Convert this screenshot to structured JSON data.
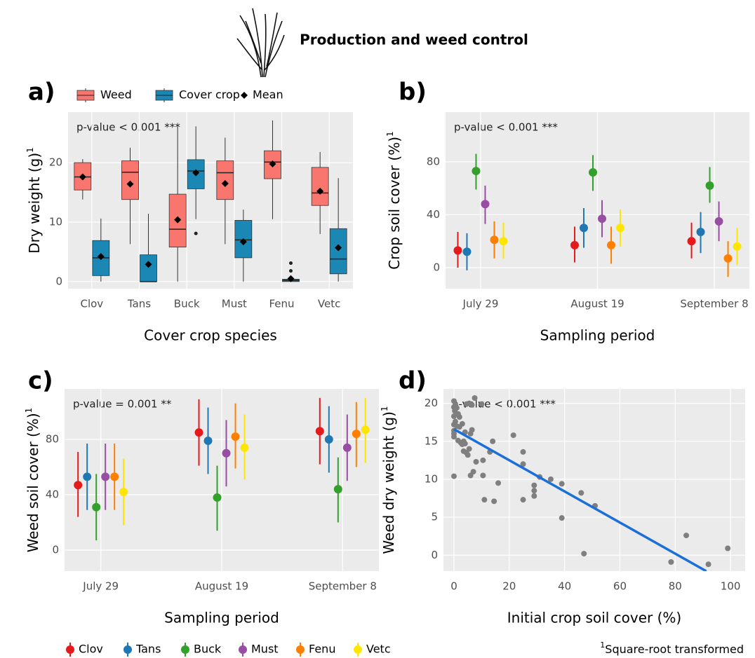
{
  "title": "Production and weed control",
  "footnote_mark": "1",
  "footnote": "Square-root transformed",
  "chart_data": [
    {
      "type": "box",
      "panel": "a)",
      "annotation": "p-value < 0.001 ***",
      "x_label": "Cover crop species",
      "y_label": "Dry weight (g)",
      "y_label_sup": "1",
      "legend_mean": "Mean",
      "categories": [
        "Clov",
        "Tans",
        "Buck",
        "Must",
        "Fenu",
        "Vetc"
      ],
      "ylim": [
        -1.2,
        28.5
      ],
      "yticks": [
        0,
        10,
        20
      ],
      "series": [
        {
          "name": "Weed",
          "color": "#f8766d",
          "boxes": [
            {
              "min": 13.8,
              "q1": 15.4,
              "median": 17.6,
              "q3": 20.0,
              "max": 20.6,
              "mean": 17.6
            },
            {
              "min": 6.3,
              "q1": 13.8,
              "median": 18.4,
              "q3": 20.3,
              "max": 22.5,
              "mean": 16.4
            },
            {
              "min": 0,
              "q1": 5.8,
              "median": 8.8,
              "q3": 14.7,
              "max": 26.0,
              "mean": 10.4
            },
            {
              "min": 6.3,
              "q1": 13.8,
              "median": 18.3,
              "q3": 20.3,
              "max": 24.2,
              "mean": 16.5
            },
            {
              "min": 10.5,
              "q1": 17.3,
              "median": 20.1,
              "q3": 22.0,
              "max": 27.1,
              "mean": 19.8
            },
            {
              "min": 8.0,
              "q1": 12.8,
              "median": 14.9,
              "q3": 19.2,
              "max": 21.8,
              "mean": 15.2
            }
          ]
        },
        {
          "name": "Cover crop",
          "color": "#1a87b4",
          "boxes": [
            {
              "min": 0,
              "q1": 1.0,
              "median": 4.0,
              "q3": 6.9,
              "max": 10.6,
              "mean": 4.2
            },
            {
              "min": 0,
              "q1": 0,
              "median": 0,
              "q3": 4.5,
              "max": 11.4,
              "mean": 2.9
            },
            {
              "min": 10.5,
              "q1": 15.6,
              "median": 18.6,
              "q3": 20.5,
              "max": 26.1,
              "mean": 18.3,
              "outliers": [
                8.1
              ]
            },
            {
              "min": 0,
              "q1": 4.0,
              "median": 7.0,
              "q3": 10.3,
              "max": 12.1,
              "mean": 6.7
            },
            {
              "min": 0,
              "q1": 0,
              "median": 0.2,
              "q3": 0.4,
              "max": 0.6,
              "mean": 0.5,
              "outliers": [
                3.1,
                1.8
              ]
            },
            {
              "min": 0,
              "q1": 1.3,
              "median": 3.8,
              "q3": 8.9,
              "max": 17.4,
              "mean": 5.7
            }
          ]
        }
      ]
    },
    {
      "type": "pointrange",
      "panel": "b)",
      "annotation": "p-value < 0.001 ***",
      "x_label": "Sampling period",
      "y_label": "Crop soil cover (%)",
      "y_label_sup": "1",
      "categories": [
        "July 29",
        "August 19",
        "September 8"
      ],
      "ylim": [
        -15.9,
        117.5
      ],
      "yticks": [
        0,
        40,
        80
      ],
      "series": [
        {
          "color": "#e41a1c",
          "values": [
            13,
            17,
            20
          ],
          "lower": [
            0,
            4,
            7
          ],
          "upper": [
            27,
            31,
            34
          ]
        },
        {
          "color": "#1f78b4",
          "values": [
            12,
            30,
            27
          ],
          "lower": [
            -2,
            15,
            11
          ],
          "upper": [
            26,
            45,
            42
          ]
        },
        {
          "color": "#33a02c",
          "values": [
            73,
            72,
            62
          ],
          "lower": [
            59,
            58,
            49
          ],
          "upper": [
            86,
            85,
            76
          ]
        },
        {
          "color": "#984ea3",
          "values": [
            48,
            37,
            35
          ],
          "lower": [
            33,
            23,
            20
          ],
          "upper": [
            62,
            51,
            50
          ]
        },
        {
          "color": "#ff7f00",
          "values": [
            21,
            17,
            7
          ],
          "lower": [
            7,
            3,
            -7
          ],
          "upper": [
            35,
            31,
            20
          ]
        },
        {
          "color": "#ffe600",
          "values": [
            20,
            30,
            16
          ],
          "lower": [
            7,
            16,
            2
          ],
          "upper": [
            34,
            44,
            30
          ]
        }
      ]
    },
    {
      "type": "pointrange",
      "panel": "c)",
      "annotation": "p-value = 0.001 **",
      "x_label": "Sampling period",
      "y_label": "Weed soil cover (%)",
      "y_label_sup": "1",
      "categories": [
        "July 29",
        "August 19",
        "September 8"
      ],
      "ylim": [
        -15.2,
        116.5
      ],
      "yticks": [
        0,
        40,
        80
      ],
      "series": [
        {
          "name": "Clov",
          "color": "#e41a1c",
          "values": [
            47,
            85,
            86
          ],
          "lower": [
            24,
            61,
            62
          ],
          "upper": [
            71,
            109,
            110
          ]
        },
        {
          "name": "Tans",
          "color": "#1f78b4",
          "values": [
            53,
            79,
            80
          ],
          "lower": [
            29,
            55,
            56
          ],
          "upper": [
            77,
            103,
            104
          ]
        },
        {
          "name": "Buck",
          "color": "#33a02c",
          "values": [
            31,
            38,
            44
          ],
          "lower": [
            7,
            14,
            20
          ],
          "upper": [
            55,
            61,
            67
          ]
        },
        {
          "name": "Must",
          "color": "#984ea3",
          "values": [
            53,
            70,
            74
          ],
          "lower": [
            29,
            46,
            50
          ],
          "upper": [
            77,
            94,
            98
          ]
        },
        {
          "name": "Fenu",
          "color": "#ff7f00",
          "values": [
            53,
            82,
            84
          ],
          "lower": [
            29,
            59,
            60
          ],
          "upper": [
            77,
            106,
            107
          ]
        },
        {
          "name": "Vetc",
          "color": "#ffe600",
          "values": [
            42,
            74,
            87
          ],
          "lower": [
            18,
            51,
            63
          ],
          "upper": [
            66,
            98,
            110
          ]
        }
      ]
    },
    {
      "type": "scatter",
      "panel": "d)",
      "annotation": "p-value < 0.001 ***",
      "x_label": "Initial crop soil cover (%)",
      "y_label": "Weed dry weight (g)",
      "y_label_sup": "1",
      "xlim": [
        -3.8,
        105.3
      ],
      "xticks": [
        0,
        20,
        40,
        60,
        80,
        100
      ],
      "ylim": [
        -2.1,
        21.9
      ],
      "yticks": [
        0,
        5,
        10,
        15,
        20
      ],
      "color": "#7f7f7f",
      "x": [
        0,
        0.5,
        0,
        1,
        0.3,
        1.5,
        0,
        2,
        0.5,
        0,
        1,
        2,
        0,
        0,
        0,
        0,
        1.5,
        2.5,
        3,
        3.5,
        4,
        3.5,
        4.5,
        5,
        5.5,
        4,
        6,
        3,
        4.5,
        5.5,
        6.5,
        7.5,
        10,
        6.5,
        8,
        7,
        6,
        10.5,
        10.5,
        11,
        14,
        13,
        14.5,
        16,
        21.5,
        25,
        25,
        25,
        29,
        29,
        29,
        31,
        35,
        39,
        39,
        46,
        47,
        51,
        78.5,
        84,
        92,
        99
      ],
      "y": [
        20.3,
        19.8,
        19.5,
        19.4,
        19.0,
        18.6,
        18.3,
        18.2,
        17.6,
        17.2,
        17.0,
        16.9,
        16.4,
        16.0,
        15.6,
        10.4,
        15.1,
        14.8,
        14.6,
        15.0,
        14.7,
        13.7,
        13.5,
        13.2,
        14.0,
        16.2,
        16.0,
        17.3,
        19.9,
        20.0,
        19.8,
        20.7,
        19.9,
        16.5,
        12.3,
        11.0,
        10.5,
        12.5,
        10.5,
        7.3,
        15.0,
        13.6,
        7.1,
        9.5,
        15.8,
        13.6,
        12.0,
        7.3,
        9.2,
        8.5,
        7.8,
        10.3,
        10.0,
        9.4,
        4.9,
        8.2,
        0.2,
        6.5,
        -0.9,
        2.6,
        -1.2,
        0.9
      ],
      "trend": {
        "intercept": 16.6,
        "slope": -0.205,
        "color": "#1a6fd8"
      }
    }
  ]
}
